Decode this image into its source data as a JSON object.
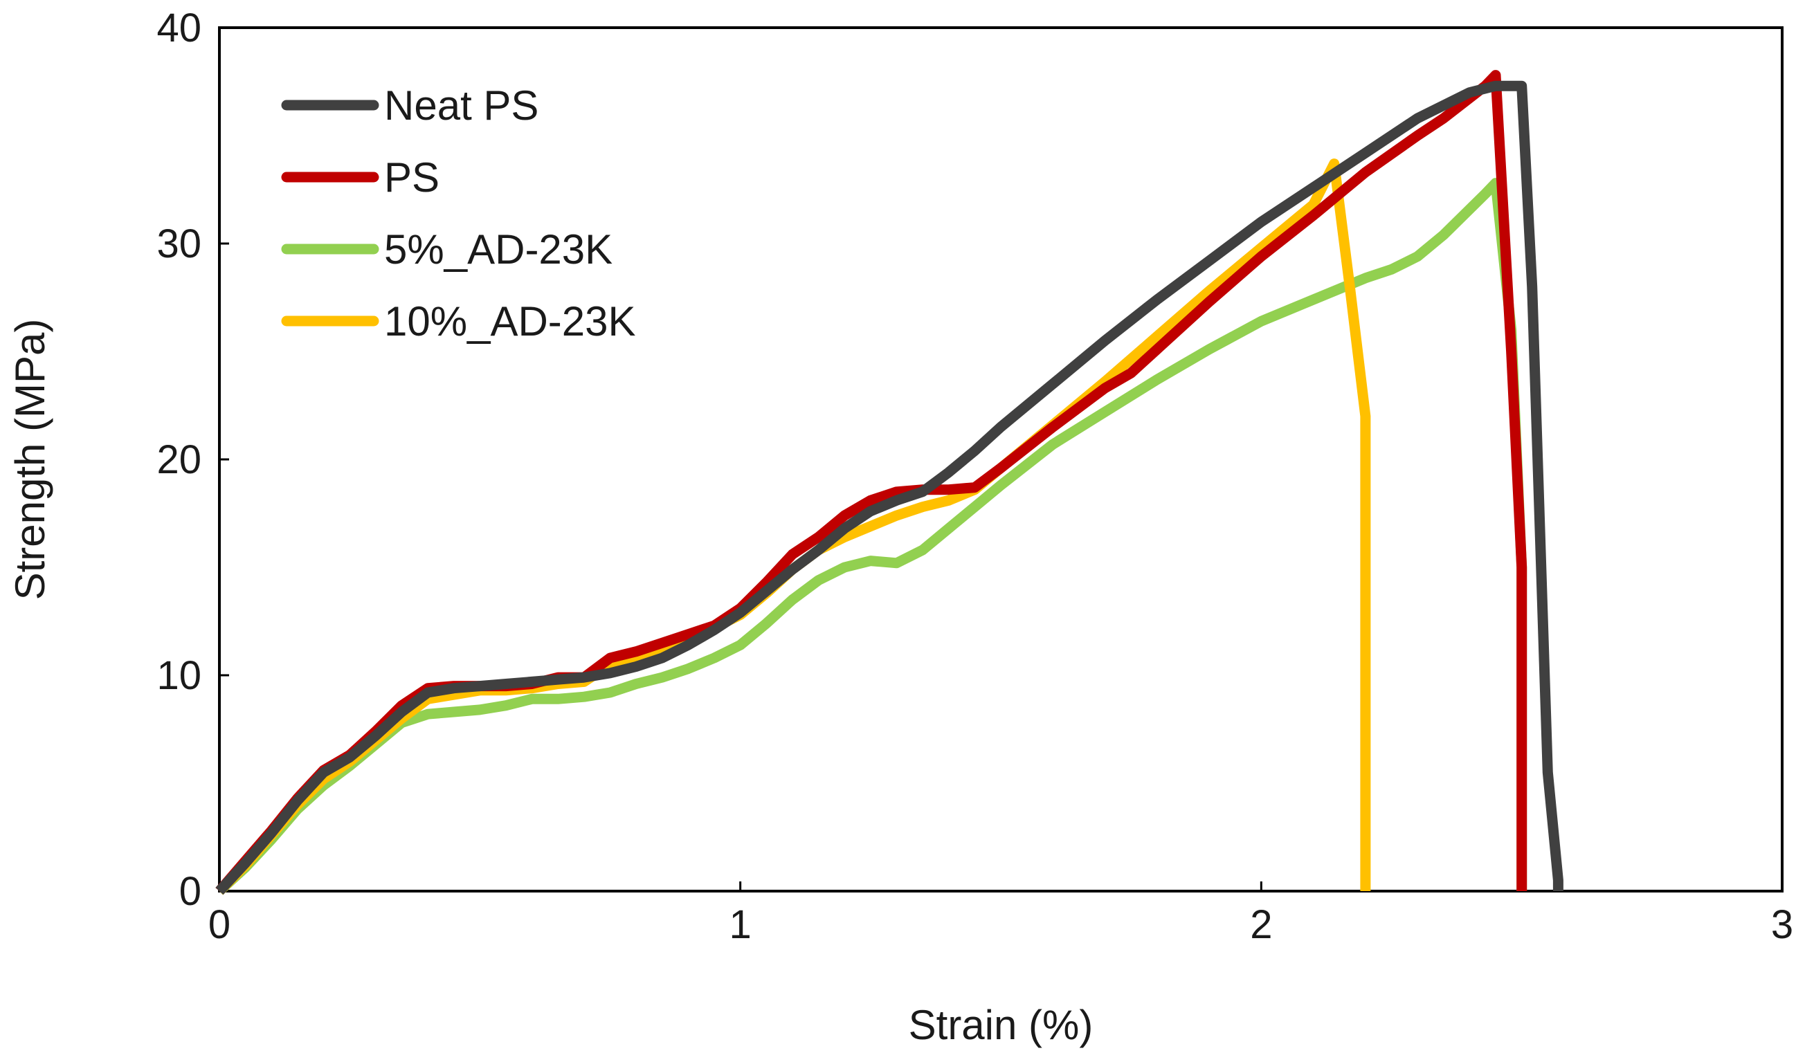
{
  "chart_data": {
    "type": "line",
    "title": "",
    "xlabel": "Strain (%)",
    "ylabel": "Strength (MPa)",
    "xlim": [
      0,
      3
    ],
    "ylim": [
      0,
      40
    ],
    "xticks": [
      0,
      1,
      2,
      3
    ],
    "yticks": [
      0,
      10,
      20,
      30,
      40
    ],
    "xtick_labels": [
      "0",
      "1",
      "2",
      "3"
    ],
    "ytick_labels": [
      "0",
      "10",
      "20",
      "30",
      "40"
    ],
    "grid": false,
    "legend_position": "top-left",
    "series": [
      {
        "name": "Neat PS",
        "color": "#404040",
        "x": [
          0,
          0.05,
          0.1,
          0.15,
          0.2,
          0.25,
          0.3,
          0.35,
          0.4,
          0.45,
          0.5,
          0.55,
          0.6,
          0.65,
          0.7,
          0.75,
          0.8,
          0.85,
          0.9,
          0.95,
          1.0,
          1.05,
          1.1,
          1.15,
          1.2,
          1.25,
          1.3,
          1.35,
          1.4,
          1.45,
          1.5,
          1.6,
          1.7,
          1.8,
          1.9,
          2.0,
          2.1,
          2.2,
          2.3,
          2.4,
          2.45,
          2.5,
          2.52,
          2.55,
          2.57,
          2.57
        ],
        "values": [
          0,
          1.3,
          2.7,
          4.2,
          5.5,
          6.2,
          7.2,
          8.3,
          9.2,
          9.4,
          9.5,
          9.6,
          9.7,
          9.8,
          9.9,
          10.1,
          10.4,
          10.8,
          11.4,
          12.1,
          12.9,
          13.9,
          14.9,
          15.8,
          16.8,
          17.6,
          18.1,
          18.5,
          19.4,
          20.4,
          21.5,
          23.5,
          25.5,
          27.4,
          29.2,
          31.0,
          32.6,
          34.2,
          35.8,
          37.0,
          37.3,
          37.3,
          28.0,
          5.5,
          0.5,
          0
        ],
        "lw": 15
      },
      {
        "name": "PS",
        "color": "#c00000",
        "x": [
          0,
          0.05,
          0.1,
          0.15,
          0.2,
          0.25,
          0.3,
          0.35,
          0.4,
          0.45,
          0.5,
          0.55,
          0.6,
          0.65,
          0.7,
          0.75,
          0.8,
          0.85,
          0.9,
          0.95,
          1.0,
          1.05,
          1.1,
          1.15,
          1.2,
          1.25,
          1.3,
          1.35,
          1.4,
          1.45,
          1.5,
          1.6,
          1.7,
          1.75,
          1.8,
          1.9,
          2.0,
          2.1,
          2.2,
          2.3,
          2.35,
          2.43,
          2.45,
          2.48,
          2.5,
          2.5
        ],
        "values": [
          0,
          1.4,
          2.8,
          4.3,
          5.6,
          6.3,
          7.4,
          8.6,
          9.4,
          9.5,
          9.5,
          9.5,
          9.6,
          9.9,
          9.9,
          10.8,
          11.1,
          11.5,
          11.9,
          12.3,
          13.1,
          14.3,
          15.6,
          16.4,
          17.4,
          18.1,
          18.5,
          18.6,
          18.6,
          18.7,
          19.6,
          21.5,
          23.3,
          24.0,
          25.1,
          27.3,
          29.4,
          31.3,
          33.3,
          35.0,
          35.8,
          37.3,
          37.8,
          25.0,
          15.0,
          0
        ],
        "lw": 15
      },
      {
        "name": "5%_AD-23K",
        "color": "#92d050",
        "x": [
          0,
          0.05,
          0.1,
          0.15,
          0.2,
          0.25,
          0.3,
          0.35,
          0.4,
          0.45,
          0.5,
          0.55,
          0.6,
          0.65,
          0.7,
          0.75,
          0.8,
          0.85,
          0.9,
          0.95,
          1.0,
          1.05,
          1.1,
          1.15,
          1.2,
          1.25,
          1.3,
          1.35,
          1.4,
          1.45,
          1.5,
          1.6,
          1.7,
          1.8,
          1.9,
          2.0,
          2.1,
          2.2,
          2.25,
          2.3,
          2.35,
          2.43,
          2.45,
          2.48,
          2.5,
          2.5
        ],
        "values": [
          0,
          1.1,
          2.4,
          3.8,
          4.9,
          5.8,
          6.8,
          7.8,
          8.2,
          8.3,
          8.4,
          8.6,
          8.9,
          8.9,
          9.0,
          9.2,
          9.6,
          9.9,
          10.3,
          10.8,
          11.4,
          12.4,
          13.5,
          14.4,
          15.0,
          15.3,
          15.2,
          15.8,
          16.8,
          17.8,
          18.8,
          20.7,
          22.2,
          23.7,
          25.1,
          26.4,
          27.4,
          28.4,
          28.8,
          29.4,
          30.4,
          32.3,
          32.8,
          26.0,
          15.0,
          0
        ],
        "lw": 15
      },
      {
        "name": "10%_AD-23K",
        "color": "#ffc000",
        "x": [
          0,
          0.05,
          0.1,
          0.15,
          0.2,
          0.25,
          0.3,
          0.35,
          0.4,
          0.45,
          0.5,
          0.55,
          0.6,
          0.65,
          0.7,
          0.75,
          0.8,
          0.85,
          0.9,
          0.95,
          1.0,
          1.05,
          1.1,
          1.15,
          1.2,
          1.25,
          1.3,
          1.35,
          1.4,
          1.45,
          1.5,
          1.6,
          1.7,
          1.8,
          1.9,
          2.0,
          2.1,
          2.14,
          2.17,
          2.2,
          2.2
        ],
        "values": [
          0,
          1.2,
          2.6,
          4.0,
          5.2,
          6.0,
          7.0,
          8.0,
          8.9,
          9.1,
          9.3,
          9.3,
          9.4,
          9.6,
          9.7,
          10.5,
          10.8,
          11.2,
          11.7,
          12.2,
          12.8,
          13.8,
          14.9,
          15.8,
          16.4,
          16.9,
          17.4,
          17.8,
          18.1,
          18.6,
          19.6,
          21.6,
          23.6,
          25.7,
          27.8,
          29.8,
          31.8,
          33.7,
          28.0,
          22.0,
          0
        ],
        "lw": 15
      }
    ]
  }
}
